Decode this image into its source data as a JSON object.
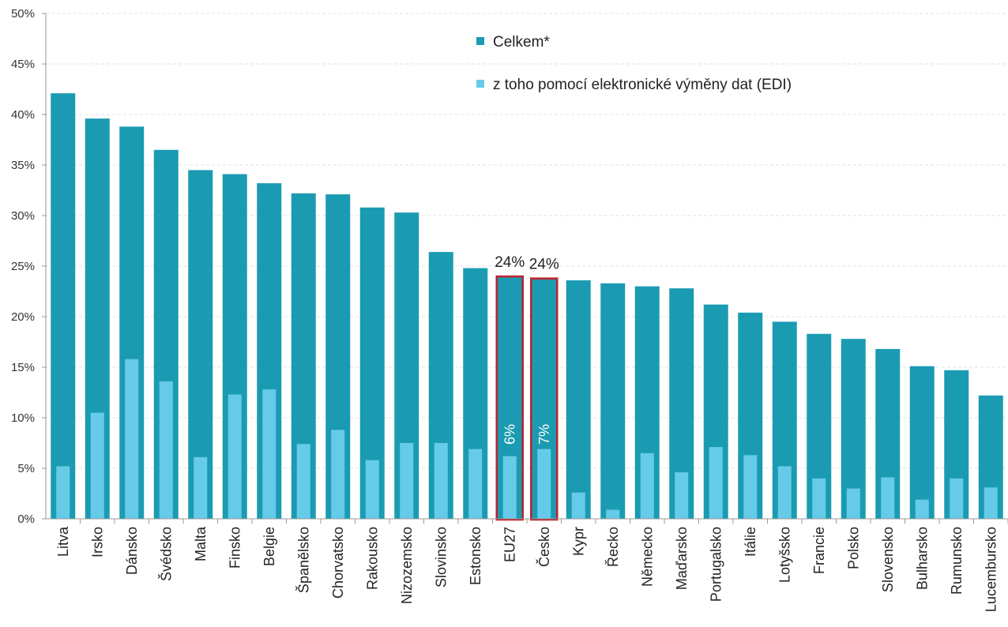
{
  "chart_data": {
    "type": "bar",
    "categories": [
      "Litva",
      "Irsko",
      "Dánsko",
      "Švédsko",
      "Malta",
      "Finsko",
      "Belgie",
      "Španělsko",
      "Chorvatsko",
      "Rakousko",
      "Nizozemsko",
      "Slovinsko",
      "Estonsko",
      "EU27",
      "Česko",
      "Kypr",
      "Řecko",
      "Německo",
      "Maďarsko",
      "Portugalsko",
      "Itálie",
      "Lotyšsko",
      "Francie",
      "Polsko",
      "Slovensko",
      "Bulharsko",
      "Rumunsko",
      "Lucembursko"
    ],
    "series": [
      {
        "name": "Celkem*",
        "color": "#1b9bb2",
        "values": [
          42.1,
          39.6,
          38.8,
          36.5,
          34.5,
          34.1,
          33.2,
          32.2,
          32.1,
          30.8,
          30.3,
          26.4,
          24.8,
          23.9,
          23.7,
          23.6,
          23.3,
          23.0,
          22.8,
          21.2,
          20.4,
          19.5,
          18.3,
          17.8,
          16.8,
          15.1,
          14.7,
          12.2
        ]
      },
      {
        "name": "z toho pomocí elektronické výměny dat (EDI)",
        "color": "#66cbe8",
        "values": [
          5.2,
          10.5,
          15.8,
          13.6,
          6.1,
          12.3,
          12.8,
          7.4,
          8.8,
          5.8,
          7.5,
          7.5,
          6.9,
          6.2,
          6.9,
          2.6,
          0.9,
          6.5,
          4.6,
          7.1,
          6.3,
          5.2,
          4.0,
          3.0,
          4.1,
          1.9,
          4.0,
          3.1
        ]
      }
    ],
    "ylim": [
      0,
      50
    ],
    "ytick_values": [
      0,
      5,
      10,
      15,
      20,
      25,
      30,
      35,
      40,
      45,
      50
    ],
    "ytick_labels": [
      "0%",
      "5%",
      "10%",
      "15%",
      "20%",
      "25%",
      "30%",
      "35%",
      "40%",
      "45%",
      "50%"
    ],
    "grid": true,
    "legend_position": "top-center",
    "highlighted_categories": [
      "EU27",
      "Česko"
    ],
    "highlight_color": "#c0202a",
    "annotations": [
      {
        "category": "EU27",
        "total_label": "24%",
        "edi_label": "6%"
      },
      {
        "category": "Česko",
        "total_label": "24%",
        "edi_label": "7%"
      }
    ]
  }
}
